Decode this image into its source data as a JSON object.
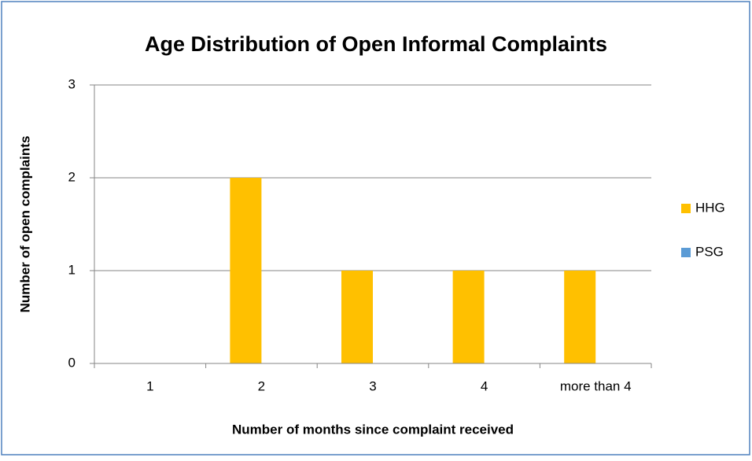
{
  "chart_data": {
    "type": "bar",
    "title": "Age Distribution of Open Informal Complaints",
    "x_label": "Number of months since complaint received",
    "y_label": "Number of open complaints",
    "categories": [
      "1",
      "2",
      "3",
      "4",
      "more than 4"
    ],
    "series": [
      {
        "name": "HHG",
        "color": "#ffc000",
        "values": [
          0,
          2,
          1,
          1,
          1
        ]
      },
      {
        "name": "PSG",
        "color": "#5b9bd5",
        "values": [
          0,
          0,
          0,
          0,
          0
        ]
      }
    ],
    "ylim": [
      0,
      3
    ],
    "yticks": [
      0,
      1,
      2,
      3
    ],
    "grid": true,
    "legend": "right"
  }
}
